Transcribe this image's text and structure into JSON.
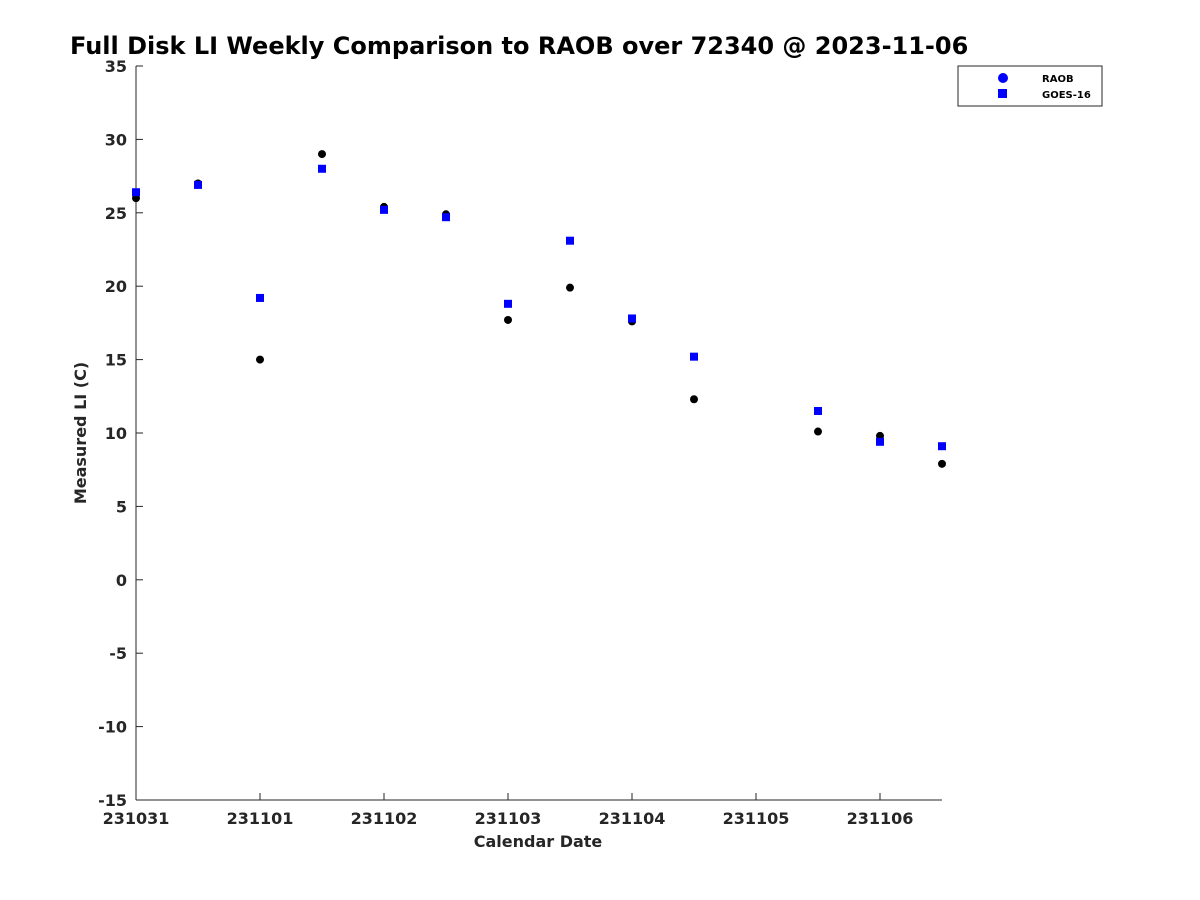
{
  "chart_data": {
    "type": "scatter",
    "title": "Full Disk LI Weekly Comparison to RAOB over 72340 @ 2023-11-06",
    "xlabel": "Calendar Date",
    "ylabel": "Measured LI (C)",
    "xlim": [
      0,
      6.5
    ],
    "ylim": [
      -15,
      35
    ],
    "x_ticks": [
      0,
      1,
      2,
      3,
      4,
      5,
      6
    ],
    "x_tick_labels": [
      "231031",
      "231101",
      "231102",
      "231103",
      "231104",
      "231105",
      "231106"
    ],
    "y_ticks": [
      35,
      30,
      25,
      20,
      15,
      10,
      5,
      0,
      -5,
      -10,
      -15
    ],
    "y_tick_labels": [
      "35",
      "30",
      "25",
      "20",
      "15",
      "10",
      "5",
      "0",
      "-5",
      "-10",
      "-15"
    ],
    "grid": false,
    "legend": "top-right",
    "series": [
      {
        "name": "RAOB",
        "marker": "circle",
        "color": "#000000",
        "legend_color": "#0000ff",
        "x": [
          0,
          0.5,
          1,
          1.5,
          2,
          2.5,
          3,
          3.5,
          4,
          4.5,
          5.5,
          6,
          6.5
        ],
        "values": [
          26.0,
          27.0,
          15.0,
          29.0,
          25.4,
          24.9,
          17.7,
          19.9,
          17.6,
          12.3,
          10.1,
          9.8,
          7.9
        ]
      },
      {
        "name": "GOES-16",
        "marker": "square",
        "color": "#0000ff",
        "legend_color": "#0000ff",
        "x": [
          0,
          0.5,
          1,
          1.5,
          2,
          2.5,
          3,
          3.5,
          4,
          4.5,
          5.5,
          6,
          6.5
        ],
        "values": [
          26.4,
          26.9,
          19.2,
          28.0,
          25.2,
          24.7,
          18.8,
          23.1,
          17.8,
          15.2,
          11.5,
          9.4,
          9.1
        ]
      }
    ]
  }
}
